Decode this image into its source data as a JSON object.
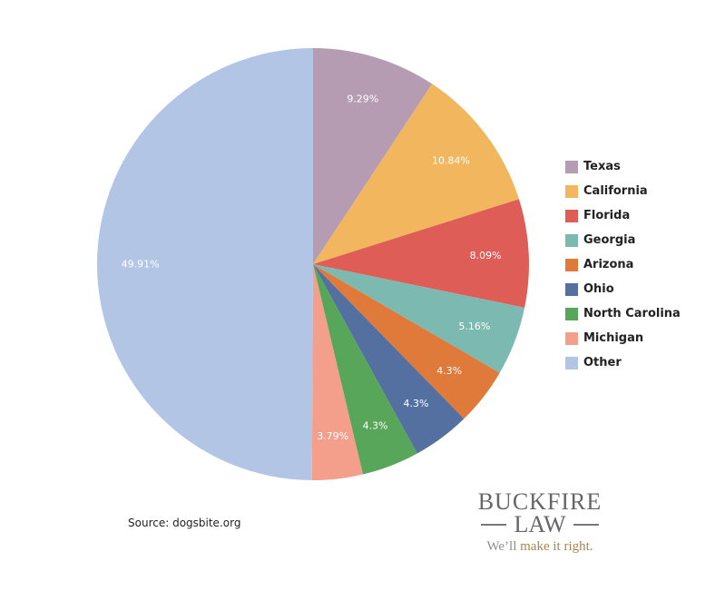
{
  "chart_data": {
    "type": "pie",
    "title": "",
    "categories": [
      "Texas",
      "California",
      "Florida",
      "Georgia",
      "Arizona",
      "Ohio",
      "North Carolina",
      "Michigan",
      "Other"
    ],
    "values": [
      9.29,
      10.84,
      8.09,
      5.16,
      4.3,
      4.3,
      4.3,
      3.79,
      49.91
    ],
    "labels": [
      "9.29%",
      "10.84%",
      "8.09%",
      "5.16%",
      "4.3%",
      "4.3%",
      "4.3%",
      "3.79%",
      "49.91%"
    ],
    "colors": [
      "#b59cb2",
      "#f1b65e",
      "#de5e57",
      "#7cb9b0",
      "#e07a3a",
      "#5470a0",
      "#58a65a",
      "#f49f8b",
      "#b3c5e5"
    ],
    "start_angle_deg": 0,
    "direction": "clockwise",
    "legend_position": "right"
  },
  "legend": {
    "items": [
      {
        "label": "Texas",
        "color": "#b59cb2"
      },
      {
        "label": "California",
        "color": "#f1b65e"
      },
      {
        "label": "Florida",
        "color": "#de5e57"
      },
      {
        "label": "Georgia",
        "color": "#7cb9b0"
      },
      {
        "label": "Arizona",
        "color": "#e07a3a"
      },
      {
        "label": "Ohio",
        "color": "#5470a0"
      },
      {
        "label": "North Carolina",
        "color": "#58a65a"
      },
      {
        "label": "Michigan",
        "color": "#f49f8b"
      },
      {
        "label": "Other",
        "color": "#b3c5e5"
      }
    ]
  },
  "source": "Source: dogsbite.org",
  "brand": {
    "name": "BUCKFIRE",
    "sub": "LAW",
    "tagline_a": "We’ll ",
    "tagline_b": "make it right."
  }
}
